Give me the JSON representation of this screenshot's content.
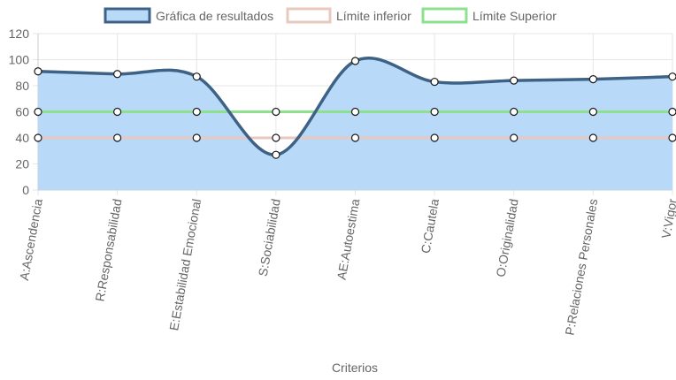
{
  "chart_data": {
    "type": "line",
    "title": "",
    "xlabel": "Criterios",
    "ylabel": "",
    "ylim": [
      0,
      120
    ],
    "yticks": [
      0,
      20,
      40,
      60,
      80,
      100,
      120
    ],
    "grid": true,
    "legend_position": "top-center",
    "categories": [
      "A:Ascendencia",
      "R:Responsabilidad",
      "E:Estabilidad Emocional",
      "S:Sociabilidad",
      "AE:Autoestima",
      "C:Cautela",
      "O:Originalidad",
      "P:Relaciones Personales",
      "V:Vigor"
    ],
    "series": [
      {
        "name": "Gráfica de resultados",
        "values": [
          91,
          89,
          87,
          27,
          99,
          83,
          84,
          85,
          87
        ],
        "color": "#3e6285",
        "fill": "#b8d9f7",
        "filled": true,
        "curved": true
      },
      {
        "name": "Límite inferior",
        "values": [
          40,
          40,
          40,
          40,
          40,
          40,
          40,
          40,
          40
        ],
        "color": "#e8c8bf",
        "filled": false,
        "curved": false
      },
      {
        "name": "Límite Superior",
        "values": [
          60,
          60,
          60,
          60,
          60,
          60,
          60,
          60,
          60
        ],
        "color": "#8ee08e",
        "filled": false,
        "curved": false
      }
    ]
  }
}
